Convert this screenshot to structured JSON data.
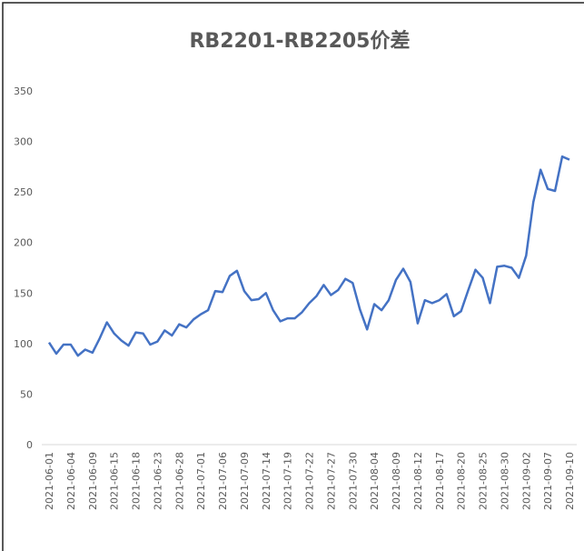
{
  "chart_data": {
    "type": "line",
    "title": "RB2201-RB2205价差",
    "categories": [
      "2021-06-01",
      null,
      null,
      "2021-06-04",
      null,
      null,
      "2021-06-09",
      null,
      null,
      "2021-06-15",
      null,
      null,
      "2021-06-18",
      null,
      null,
      "2021-06-23",
      null,
      null,
      "2021-06-28",
      null,
      null,
      "2021-07-01",
      null,
      null,
      "2021-07-06",
      null,
      null,
      "2021-07-09",
      null,
      null,
      "2021-07-14",
      null,
      null,
      "2021-07-19",
      null,
      null,
      "2021-07-22",
      null,
      null,
      "2021-07-27",
      null,
      null,
      "2021-07-30",
      null,
      null,
      "2021-08-04",
      null,
      null,
      "2021-08-09",
      null,
      null,
      "2021-08-12",
      null,
      null,
      "2021-08-17",
      null,
      null,
      "2021-08-20",
      null,
      null,
      "2021-08-25",
      null,
      null,
      "2021-08-30",
      null,
      null,
      "2021-09-02",
      null,
      null,
      "2021-09-07",
      null,
      null,
      "2021-09-10"
    ],
    "series": [
      {
        "color": "#4472c4",
        "values": [
          101,
          90,
          99,
          99,
          88,
          94,
          91,
          105,
          121,
          110,
          103,
          98,
          111,
          110,
          99,
          102,
          113,
          108,
          119,
          116,
          124,
          129,
          133,
          152,
          151,
          167,
          172,
          152,
          143,
          144,
          150,
          133,
          122,
          125,
          125,
          131,
          140,
          147,
          158,
          148,
          153,
          164,
          160,
          134,
          114,
          139,
          133,
          143,
          163,
          174,
          161,
          120,
          143,
          140,
          143,
          149,
          127,
          132,
          153,
          173,
          165,
          140,
          176,
          177,
          175,
          165,
          187,
          240,
          272,
          253,
          251,
          285,
          282
        ]
      }
    ],
    "ylim": [
      0,
      350
    ],
    "yticks": [
      0,
      50,
      100,
      150,
      200,
      250,
      300,
      350
    ],
    "grid": false
  }
}
